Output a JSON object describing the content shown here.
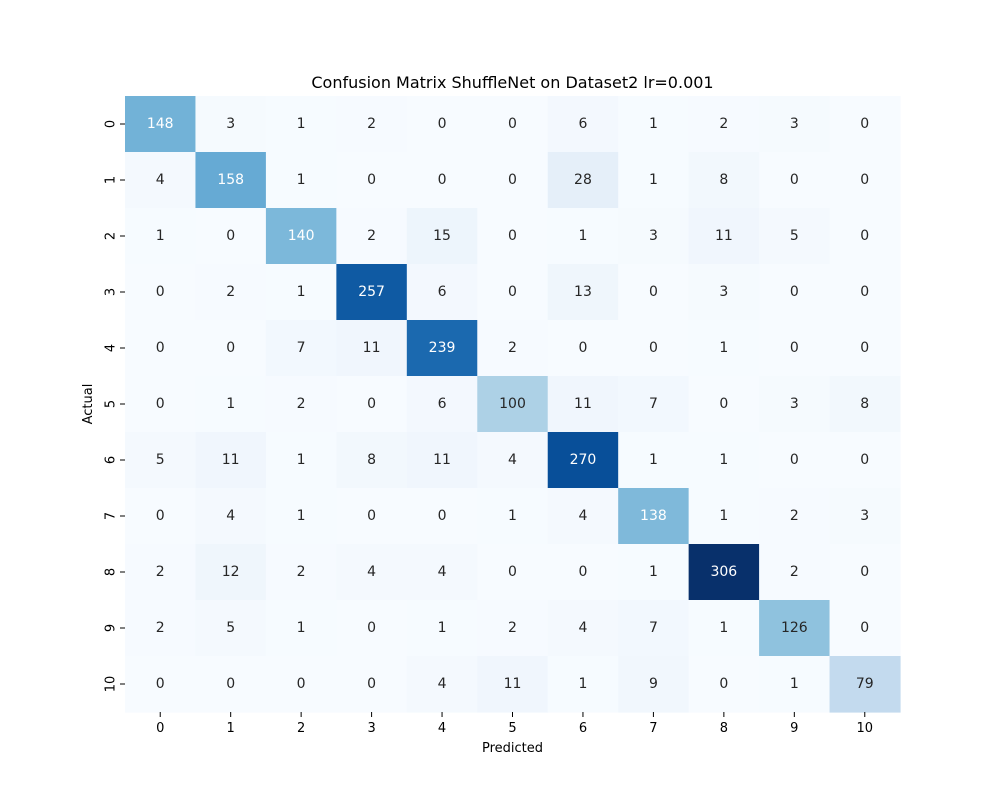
{
  "chart_data": {
    "type": "heatmap",
    "title": "Confusion Matrix ShuffleNet on Dataset2 lr=0.001",
    "xlabel": "Predicted",
    "ylabel": "Actual",
    "x_categories": [
      "0",
      "1",
      "2",
      "3",
      "4",
      "5",
      "6",
      "7",
      "8",
      "9",
      "10"
    ],
    "y_categories": [
      "0",
      "1",
      "2",
      "3",
      "4",
      "5",
      "6",
      "7",
      "8",
      "9",
      "10"
    ],
    "values": [
      [
        148,
        3,
        1,
        2,
        0,
        0,
        6,
        1,
        2,
        3,
        0
      ],
      [
        4,
        158,
        1,
        0,
        0,
        0,
        28,
        1,
        8,
        0,
        0
      ],
      [
        1,
        0,
        140,
        2,
        15,
        0,
        1,
        3,
        11,
        5,
        0
      ],
      [
        0,
        2,
        1,
        257,
        6,
        0,
        13,
        0,
        3,
        0,
        0
      ],
      [
        0,
        0,
        7,
        11,
        239,
        2,
        0,
        0,
        1,
        0,
        0
      ],
      [
        0,
        1,
        2,
        0,
        6,
        100,
        11,
        7,
        0,
        3,
        8
      ],
      [
        5,
        11,
        1,
        8,
        11,
        4,
        270,
        1,
        1,
        0,
        0
      ],
      [
        0,
        4,
        1,
        0,
        0,
        1,
        4,
        138,
        1,
        2,
        3
      ],
      [
        2,
        12,
        2,
        4,
        4,
        0,
        0,
        1,
        306,
        2,
        0
      ],
      [
        2,
        5,
        1,
        0,
        1,
        2,
        4,
        7,
        1,
        126,
        0
      ],
      [
        0,
        0,
        0,
        0,
        4,
        11,
        1,
        9,
        0,
        1,
        79
      ]
    ],
    "value_range": [
      0,
      306
    ],
    "colormap": "Blues",
    "colorbar": false,
    "grid": false
  }
}
